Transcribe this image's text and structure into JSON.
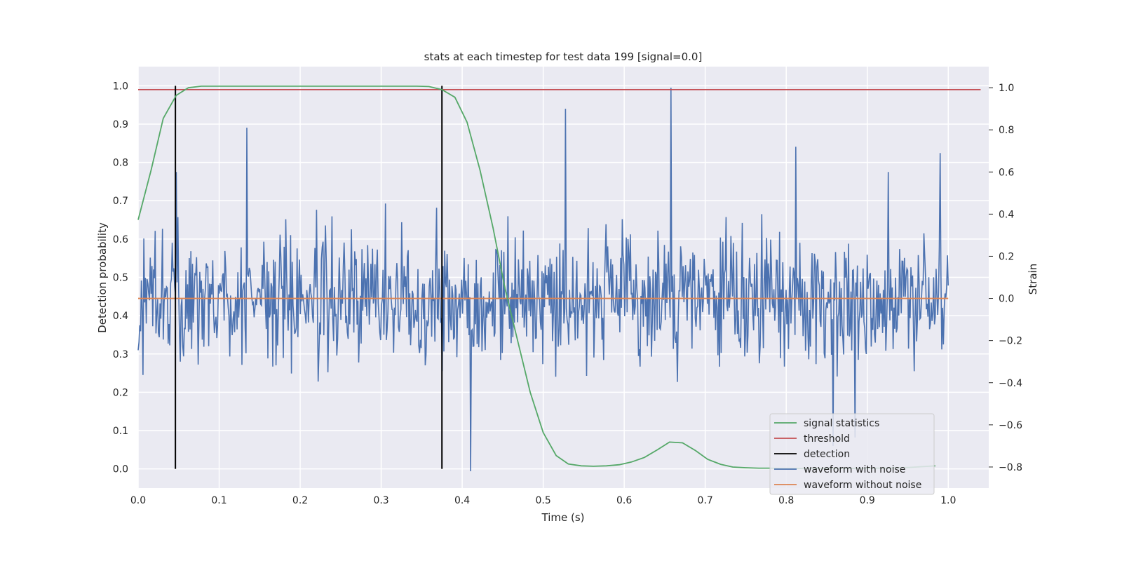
{
  "chart_data": {
    "type": "line",
    "title": "stats at each timestep for test data 199 [signal=0.0]",
    "xlabel": "Time (s)",
    "ylabel_left": "Detection probability",
    "ylabel_right": "Strain",
    "xlim": [
      0.0,
      1.05
    ],
    "ylim_left": [
      -0.05,
      1.05
    ],
    "ylim_right": [
      -0.9,
      1.1
    ],
    "x_ticks": [
      0.0,
      0.1,
      0.2,
      0.3,
      0.4,
      0.5,
      0.6,
      0.7,
      0.8,
      0.9,
      1.0
    ],
    "x_tick_labels": [
      "0.0",
      "0.1",
      "0.2",
      "0.3",
      "0.4",
      "0.5",
      "0.6",
      "0.7",
      "0.8",
      "0.9",
      "1.0"
    ],
    "y_ticks_left": [
      0.0,
      0.1,
      0.2,
      0.3,
      0.4,
      0.5,
      0.6,
      0.7,
      0.8,
      0.9,
      1.0
    ],
    "y_tick_labels_left": [
      "0.0",
      "0.1",
      "0.2",
      "0.3",
      "0.4",
      "0.5",
      "0.6",
      "0.7",
      "0.8",
      "0.9",
      "1.0"
    ],
    "y_ticks_right": [
      -0.8,
      -0.6,
      -0.4,
      -0.2,
      0.0,
      0.2,
      0.4,
      0.6,
      0.8,
      1.0
    ],
    "y_tick_labels_right": [
      "−0.8",
      "−0.6",
      "−0.4",
      "−0.2",
      "0.0",
      "0.2",
      "0.4",
      "0.6",
      "0.8",
      "1.0"
    ],
    "grid": true,
    "legend_position": "lower-right",
    "series": [
      {
        "name": "signal statistics",
        "axis": "left",
        "color": "#55a868",
        "x": [
          0.0,
          0.016,
          0.031,
          0.047,
          0.062,
          0.078,
          0.094,
          0.109,
          0.125,
          0.141,
          0.156,
          0.172,
          0.188,
          0.203,
          0.219,
          0.234,
          0.25,
          0.266,
          0.281,
          0.297,
          0.312,
          0.328,
          0.344,
          0.359,
          0.375,
          0.391,
          0.406,
          0.422,
          0.438,
          0.453,
          0.469,
          0.484,
          0.5,
          0.516,
          0.531,
          0.547,
          0.562,
          0.578,
          0.594,
          0.609,
          0.625,
          0.641,
          0.656,
          0.672,
          0.688,
          0.703,
          0.719,
          0.734,
          0.75,
          0.766,
          0.781,
          0.797,
          0.812,
          0.828,
          0.844,
          0.859,
          0.875,
          0.891,
          0.906,
          0.922,
          0.938,
          0.953,
          0.969,
          0.984
        ],
        "values": [
          0.65,
          0.78,
          0.915,
          0.975,
          0.995,
          0.999,
          0.999,
          0.999,
          0.999,
          0.999,
          0.999,
          0.999,
          0.999,
          0.999,
          0.999,
          0.999,
          0.999,
          0.999,
          0.999,
          0.999,
          0.999,
          0.999,
          0.999,
          0.998,
          0.99,
          0.97,
          0.905,
          0.78,
          0.63,
          0.47,
          0.33,
          0.2,
          0.095,
          0.035,
          0.013,
          0.008,
          0.007,
          0.008,
          0.011,
          0.018,
          0.03,
          0.05,
          0.07,
          0.068,
          0.048,
          0.025,
          0.012,
          0.005,
          0.003,
          0.002,
          0.002,
          0.001,
          0.001,
          0.001,
          0.001,
          0.001,
          0.001,
          0.001,
          0.002,
          0.002,
          0.003,
          0.004,
          0.006,
          0.008
        ]
      },
      {
        "name": "threshold",
        "axis": "left",
        "color": "#c44e52",
        "x": [
          0.0,
          1.04
        ],
        "values": [
          0.99,
          0.99
        ]
      },
      {
        "name": "detection",
        "axis": "left",
        "color": "#000000",
        "x": [
          0.046,
          0.375
        ],
        "values": [
          1.0,
          1.0
        ],
        "style": "vertical"
      },
      {
        "name": "waveform with noise",
        "axis": "right",
        "color": "#4c72b0",
        "x_start": 0.0,
        "x_end": 1.0,
        "peaks": [
          [
            0.047,
            0.6
          ],
          [
            0.134,
            0.81
          ],
          [
            0.305,
            0.45
          ],
          [
            0.368,
            0.43
          ],
          [
            0.41,
            -0.82
          ],
          [
            0.456,
            0.39
          ],
          [
            0.5,
            0.12
          ],
          [
            0.528,
            0.9
          ],
          [
            0.658,
            1.0
          ],
          [
            0.812,
            0.72
          ],
          [
            0.858,
            -0.7
          ],
          [
            0.885,
            -0.66
          ],
          [
            0.926,
            0.6
          ],
          [
            0.99,
            0.69
          ]
        ],
        "noise_amplitude": 0.28
      },
      {
        "name": "waveform without noise",
        "axis": "right",
        "color": "#dd8452",
        "x": [
          0.0,
          1.0
        ],
        "values": [
          0.0,
          0.0
        ]
      }
    ]
  }
}
